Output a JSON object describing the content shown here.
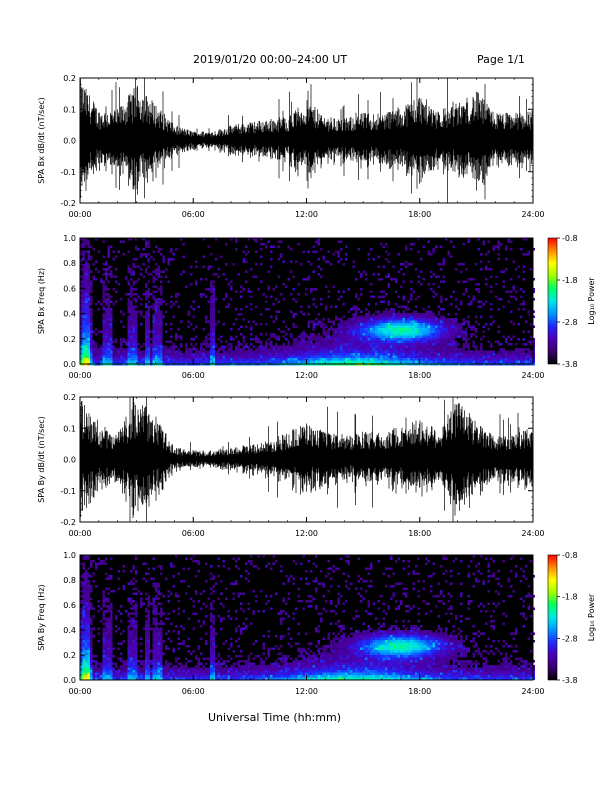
{
  "header": {
    "title": "2019/01/20  00:00–24:00 UT",
    "page": "Page 1/1"
  },
  "xlabel": "Universal Time (hh:mm)",
  "colors": {
    "colormap": [
      "#000000",
      "#3a006e",
      "#4b00b4",
      "#1e28ff",
      "#0096ff",
      "#00e6e6",
      "#00ff64",
      "#a0ff00",
      "#ffff00",
      "#ff8c00",
      "#ff0000"
    ]
  },
  "chart_data": [
    {
      "type": "line",
      "ylabel": "SPA Bx dB/dt (nT/sec)",
      "xlim": [
        0,
        24
      ],
      "ylim": [
        -0.2,
        0.2
      ],
      "xticks": [
        "00:00",
        "06:00",
        "12:00",
        "18:00",
        "24:00"
      ],
      "yticks": [
        "-0.2",
        "-0.1",
        "0.0",
        "0.1",
        "0.2"
      ],
      "series": [
        {
          "x": [
            0,
            1,
            2,
            3,
            4,
            5,
            6,
            7,
            8,
            9,
            10,
            11,
            12,
            13,
            14,
            15,
            16,
            17,
            18,
            19,
            20,
            21,
            22,
            23,
            24
          ],
          "amplitude": [
            0.2,
            0.1,
            0.1,
            0.18,
            0.12,
            0.05,
            0.03,
            0.03,
            0.05,
            0.06,
            0.07,
            0.08,
            0.13,
            0.08,
            0.07,
            0.09,
            0.09,
            0.11,
            0.15,
            0.1,
            0.12,
            0.16,
            0.09,
            0.09,
            0.1
          ]
        }
      ]
    },
    {
      "type": "heatmap",
      "ylabel": "SPA Bx Freq (Hz)",
      "xlim": [
        0,
        24
      ],
      "ylim": [
        0.0,
        1.0
      ],
      "xticks": [
        "00:00",
        "06:00",
        "12:00",
        "18:00",
        "24:00"
      ],
      "yticks": [
        "0.0",
        "0.2",
        "0.4",
        "0.6",
        "0.8",
        "1.0"
      ],
      "colorbar": {
        "label": "Log₁₀ Power",
        "range": [
          -3.8,
          -0.8
        ],
        "ticks": [
          "-0.8",
          "-1.8",
          "-2.8",
          "-3.8"
        ]
      }
    },
    {
      "type": "line",
      "ylabel": "SPA By dB/dt (nT/sec)",
      "xlim": [
        0,
        24
      ],
      "ylim": [
        -0.2,
        0.2
      ],
      "xticks": [
        "00:00",
        "06:00",
        "12:00",
        "18:00",
        "24:00"
      ],
      "yticks": [
        "-0.2",
        "-0.1",
        "0.0",
        "0.1",
        "0.2"
      ],
      "series": [
        {
          "x": [
            0,
            1,
            2,
            3,
            4,
            5,
            6,
            7,
            8,
            9,
            10,
            11,
            12,
            13,
            14,
            15,
            16,
            17,
            18,
            19,
            20,
            21,
            22,
            23,
            24
          ],
          "amplitude": [
            0.2,
            0.1,
            0.09,
            0.2,
            0.14,
            0.04,
            0.03,
            0.03,
            0.04,
            0.05,
            0.06,
            0.09,
            0.12,
            0.09,
            0.08,
            0.09,
            0.09,
            0.11,
            0.13,
            0.1,
            0.2,
            0.12,
            0.08,
            0.09,
            0.1
          ]
        }
      ]
    },
    {
      "type": "heatmap",
      "ylabel": "SPA By Freq (Hz)",
      "xlim": [
        0,
        24
      ],
      "ylim": [
        0.0,
        1.0
      ],
      "xticks": [
        "00:00",
        "06:00",
        "12:00",
        "18:00",
        "24:00"
      ],
      "yticks": [
        "0.0",
        "0.2",
        "0.4",
        "0.6",
        "0.8",
        "1.0"
      ],
      "colorbar": {
        "label": "Log₁₀ Power",
        "range": [
          -3.8,
          -0.8
        ],
        "ticks": [
          "-0.8",
          "-1.8",
          "-2.8",
          "-3.8"
        ]
      }
    }
  ]
}
